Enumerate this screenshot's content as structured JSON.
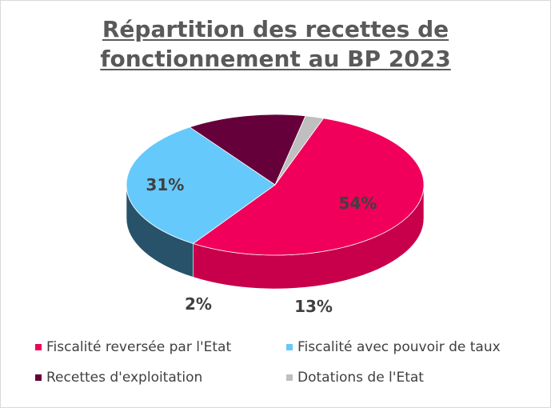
{
  "title": {
    "line1": "Répartition des recettes de",
    "line2": "fonctionnement au BP 2023"
  },
  "chart_data": {
    "type": "pie",
    "title": "Répartition des recettes de fonctionnement au BP 2023",
    "three_d": true,
    "legend_position": "bottom",
    "slices": [
      {
        "name": "Fiscalité reversée par l'Etat",
        "value": 54,
        "label": "54%",
        "color": "#f0005a",
        "side_color": "#c8004b"
      },
      {
        "name": "Fiscalité avec pouvoir de taux",
        "value": 31,
        "label": "31%",
        "color": "#66c9fb",
        "side_color": "#27526a"
      },
      {
        "name": "Recettes d'exploitation",
        "value": 13,
        "label": "13%",
        "color": "#65003a",
        "side_color": "#2c0018"
      },
      {
        "name": "Dotations de l'Etat",
        "value": 2,
        "label": "2%",
        "color": "#bfbfbf",
        "side_color": "#8c8c8c"
      }
    ]
  }
}
